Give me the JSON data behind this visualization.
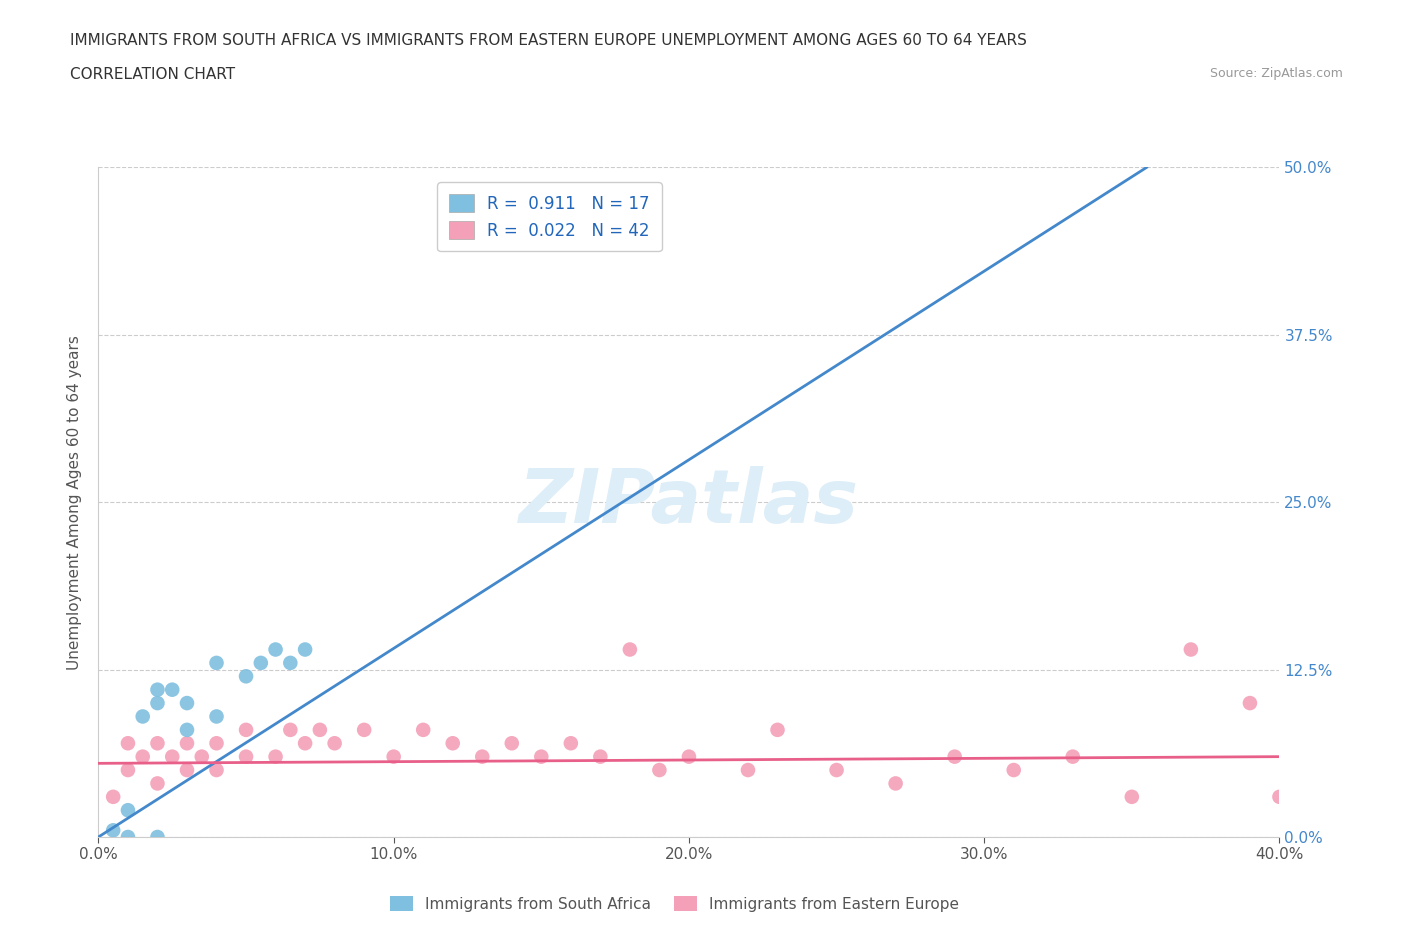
{
  "title_line1": "IMMIGRANTS FROM SOUTH AFRICA VS IMMIGRANTS FROM EASTERN EUROPE UNEMPLOYMENT AMONG AGES 60 TO 64 YEARS",
  "title_line2": "CORRELATION CHART",
  "source_text": "Source: ZipAtlas.com",
  "ylabel": "Unemployment Among Ages 60 to 64 years",
  "xlabel": "",
  "xlim": [
    0.0,
    0.4
  ],
  "ylim": [
    0.0,
    0.5
  ],
  "xticks": [
    0.0,
    0.1,
    0.2,
    0.3,
    0.4
  ],
  "xtick_labels": [
    "0.0%",
    "10.0%",
    "20.0%",
    "30.0%",
    "40.0%"
  ],
  "yticks": [
    0.0,
    0.125,
    0.25,
    0.375,
    0.5
  ],
  "ytick_labels": [
    "0.0%",
    "12.5%",
    "25.0%",
    "37.5%",
    "50.0%"
  ],
  "blue_R": 0.911,
  "blue_N": 17,
  "pink_R": 0.022,
  "pink_N": 42,
  "blue_color": "#7fbfdf",
  "pink_color": "#f4a0b8",
  "blue_line_color": "#4488cc",
  "pink_line_color": "#e8608a",
  "watermark": "ZIPatlas",
  "watermark_color": "#ddeef8",
  "legend_label_blue": "Immigrants from South Africa",
  "legend_label_pink": "Immigrants from Eastern Europe",
  "blue_scatter_x": [
    0.005,
    0.01,
    0.01,
    0.015,
    0.02,
    0.02,
    0.025,
    0.03,
    0.03,
    0.04,
    0.04,
    0.05,
    0.055,
    0.06,
    0.065,
    0.07,
    0.02
  ],
  "blue_scatter_y": [
    0.005,
    0.02,
    0.0,
    0.09,
    0.1,
    0.11,
    0.11,
    0.08,
    0.1,
    0.09,
    0.13,
    0.12,
    0.13,
    0.14,
    0.13,
    0.14,
    0.0
  ],
  "pink_scatter_x": [
    0.005,
    0.01,
    0.01,
    0.015,
    0.02,
    0.02,
    0.025,
    0.03,
    0.03,
    0.035,
    0.04,
    0.04,
    0.05,
    0.05,
    0.06,
    0.065,
    0.07,
    0.075,
    0.08,
    0.09,
    0.1,
    0.11,
    0.12,
    0.13,
    0.14,
    0.15,
    0.16,
    0.17,
    0.18,
    0.19,
    0.2,
    0.22,
    0.23,
    0.25,
    0.27,
    0.29,
    0.31,
    0.33,
    0.35,
    0.37,
    0.39,
    0.4
  ],
  "pink_scatter_y": [
    0.03,
    0.05,
    0.07,
    0.06,
    0.04,
    0.07,
    0.06,
    0.05,
    0.07,
    0.06,
    0.05,
    0.07,
    0.06,
    0.08,
    0.06,
    0.08,
    0.07,
    0.08,
    0.07,
    0.08,
    0.06,
    0.08,
    0.07,
    0.06,
    0.07,
    0.06,
    0.07,
    0.06,
    0.14,
    0.05,
    0.06,
    0.05,
    0.08,
    0.05,
    0.04,
    0.06,
    0.05,
    0.06,
    0.03,
    0.14,
    0.1,
    0.03
  ],
  "blue_line_x0": 0.0,
  "blue_line_y0": 0.0,
  "blue_line_x1": 0.355,
  "blue_line_y1": 0.5,
  "pink_line_x0": 0.0,
  "pink_line_y0": 0.055,
  "pink_line_x1": 0.4,
  "pink_line_y1": 0.06,
  "background_color": "#ffffff",
  "grid_color": "#cccccc"
}
